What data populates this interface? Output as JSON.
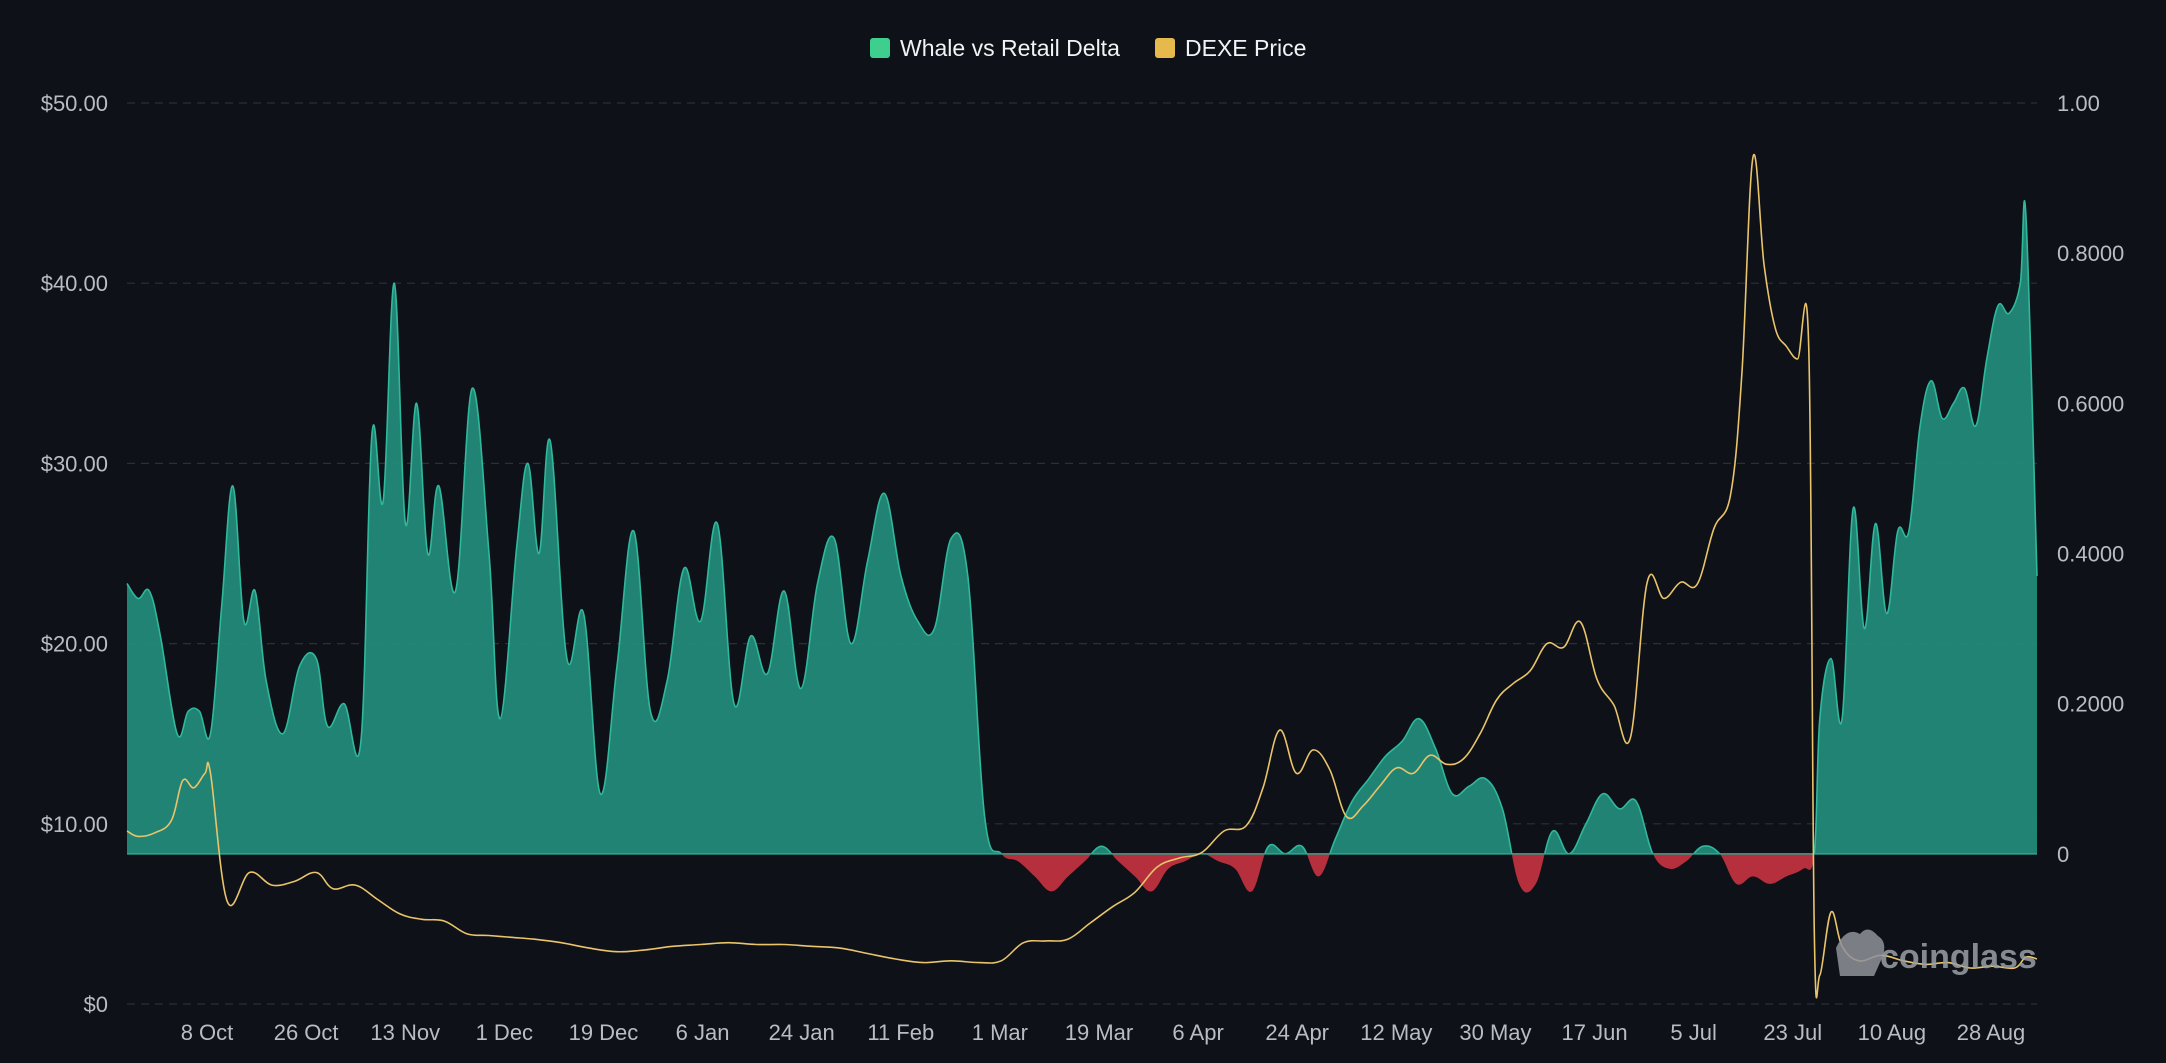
{
  "chart_data": {
    "type": "area",
    "legend": {
      "placement": "top-center",
      "items": [
        {
          "label": "Whale vs Retail Delta",
          "color": "#3ecf8e"
        },
        {
          "label": "DEXE Price",
          "color": "#e6b94c"
        }
      ]
    },
    "colors": {
      "background": "#0e1117",
      "area_positive": "#238a78",
      "area_positive_line": "#2fb89c",
      "area_negative": "#c0313f",
      "price_line": "#e9c46a",
      "grid": "#2a2f38",
      "tick_text": "#b8bcc4"
    },
    "left_axis": {
      "ticks": [
        "$50.00",
        "$40.00",
        "$30.00",
        "$20.00",
        "$10.00",
        "$0"
      ],
      "range": [
        0,
        50
      ]
    },
    "right_axis": {
      "ticks": [
        "1.00",
        "0.8000",
        "0.6000",
        "0.4000",
        "0.2000",
        "0"
      ],
      "range": [
        -0.2,
        1.0
      ]
    },
    "x_ticks": [
      "8 Oct",
      "26 Oct",
      "13 Nov",
      "1 Dec",
      "19 Dec",
      "6 Jan",
      "24 Jan",
      "11 Feb",
      "1 Mar",
      "19 Mar",
      "6 Apr",
      "24 Apr",
      "12 May",
      "30 May",
      "17 Jun",
      "5 Jul",
      "23 Jul",
      "10 Aug",
      "28 Aug"
    ],
    "x_range": [
      "2024-09-22",
      "2025-08-31"
    ],
    "grid": true,
    "watermark": "coinglass",
    "series": [
      {
        "name": "Whale vs Retail Delta",
        "axis": "right",
        "x": [
          "2024-09-22",
          "2024-09-24",
          "2024-09-26",
          "2024-09-28",
          "2024-10-01",
          "2024-10-03",
          "2024-10-05",
          "2024-10-07",
          "2024-10-09",
          "2024-10-11",
          "2024-10-13",
          "2024-10-15",
          "2024-10-17",
          "2024-10-20",
          "2024-10-23",
          "2024-10-26",
          "2024-10-28",
          "2024-10-31",
          "2024-11-03",
          "2024-11-05",
          "2024-11-07",
          "2024-11-09",
          "2024-11-11",
          "2024-11-13",
          "2024-11-15",
          "2024-11-17",
          "2024-11-20",
          "2024-11-23",
          "2024-11-26",
          "2024-11-28",
          "2024-12-01",
          "2024-12-03",
          "2024-12-05",
          "2024-12-07",
          "2024-12-10",
          "2024-12-13",
          "2024-12-16",
          "2024-12-19",
          "2024-12-22",
          "2024-12-25",
          "2024-12-28",
          "2024-12-31",
          "2025-01-03",
          "2025-01-06",
          "2025-01-09",
          "2025-01-12",
          "2025-01-15",
          "2025-01-18",
          "2025-01-21",
          "2025-01-24",
          "2025-01-27",
          "2025-01-30",
          "2025-02-02",
          "2025-02-05",
          "2025-02-08",
          "2025-02-11",
          "2025-02-14",
          "2025-02-17",
          "2025-02-20",
          "2025-02-23",
          "2025-02-26",
          "2025-03-01",
          "2025-03-04",
          "2025-03-07",
          "2025-03-10",
          "2025-03-13",
          "2025-03-16",
          "2025-03-19",
          "2025-03-22",
          "2025-03-25",
          "2025-03-28",
          "2025-03-31",
          "2025-04-03",
          "2025-04-06",
          "2025-04-09",
          "2025-04-12",
          "2025-04-15",
          "2025-04-18",
          "2025-04-21",
          "2025-04-24",
          "2025-04-27",
          "2025-04-30",
          "2025-05-03",
          "2025-05-06",
          "2025-05-09",
          "2025-05-12",
          "2025-05-15",
          "2025-05-18",
          "2025-05-21",
          "2025-05-24",
          "2025-05-27",
          "2025-05-30",
          "2025-06-02",
          "2025-06-05",
          "2025-06-08",
          "2025-06-11",
          "2025-06-14",
          "2025-06-17",
          "2025-06-20",
          "2025-06-23",
          "2025-06-26",
          "2025-06-29",
          "2025-07-02",
          "2025-07-05",
          "2025-07-08",
          "2025-07-11",
          "2025-07-14",
          "2025-07-17",
          "2025-07-20",
          "2025-07-22",
          "2025-07-23",
          "2025-07-25",
          "2025-07-27",
          "2025-07-29",
          "2025-07-31",
          "2025-08-02",
          "2025-08-04",
          "2025-08-06",
          "2025-08-08",
          "2025-08-10",
          "2025-08-12",
          "2025-08-14",
          "2025-08-16",
          "2025-08-18",
          "2025-08-20",
          "2025-08-22",
          "2025-08-24",
          "2025-08-26",
          "2025-08-28",
          "2025-08-29",
          "2025-08-31"
        ],
        "values": [
          0.36,
          0.34,
          0.35,
          0.29,
          0.16,
          0.19,
          0.19,
          0.16,
          0.33,
          0.49,
          0.31,
          0.35,
          0.23,
          0.16,
          0.25,
          0.26,
          0.17,
          0.2,
          0.15,
          0.56,
          0.47,
          0.76,
          0.44,
          0.6,
          0.4,
          0.49,
          0.35,
          0.62,
          0.4,
          0.18,
          0.41,
          0.52,
          0.4,
          0.55,
          0.26,
          0.32,
          0.08,
          0.25,
          0.43,
          0.19,
          0.23,
          0.38,
          0.31,
          0.44,
          0.2,
          0.29,
          0.24,
          0.35,
          0.22,
          0.36,
          0.42,
          0.28,
          0.39,
          0.48,
          0.37,
          0.31,
          0.3,
          0.42,
          0.37,
          0.05,
          0.0,
          -0.01,
          -0.03,
          -0.05,
          -0.03,
          -0.01,
          0.01,
          -0.01,
          -0.03,
          -0.05,
          -0.02,
          -0.01,
          0.0,
          -0.01,
          -0.02,
          -0.05,
          0.01,
          0.0,
          0.01,
          -0.03,
          0.02,
          0.07,
          0.1,
          0.13,
          0.15,
          0.18,
          0.14,
          0.08,
          0.09,
          0.1,
          0.06,
          -0.04,
          -0.04,
          0.03,
          0.0,
          0.04,
          0.08,
          0.06,
          0.07,
          0.0,
          -0.02,
          -0.01,
          0.01,
          0.0,
          -0.04,
          -0.03,
          -0.04,
          -0.03,
          -0.02,
          0.0,
          0.18,
          0.26,
          0.18,
          0.46,
          0.3,
          0.44,
          0.32,
          0.43,
          0.43,
          0.57,
          0.63,
          0.58,
          0.6,
          0.62,
          0.57,
          0.66,
          0.73,
          0.72,
          0.76,
          0.85,
          0.37
        ]
      },
      {
        "name": "DEXE Price",
        "axis": "left",
        "x": [
          "2024-09-22",
          "2024-09-24",
          "2024-09-27",
          "2024-09-30",
          "2024-10-02",
          "2024-10-04",
          "2024-10-06",
          "2024-10-07",
          "2024-10-10",
          "2024-10-14",
          "2024-10-18",
          "2024-10-22",
          "2024-10-26",
          "2024-10-29",
          "2024-11-02",
          "2024-11-06",
          "2024-11-10",
          "2024-11-14",
          "2024-11-18",
          "2024-11-22",
          "2024-11-26",
          "2024-11-30",
          "2024-12-04",
          "2024-12-09",
          "2024-12-14",
          "2024-12-19",
          "2024-12-24",
          "2024-12-29",
          "2025-01-03",
          "2025-01-08",
          "2025-01-13",
          "2025-01-18",
          "2025-01-23",
          "2025-01-28",
          "2025-02-02",
          "2025-02-07",
          "2025-02-12",
          "2025-02-17",
          "2025-02-22",
          "2025-02-26",
          "2025-03-02",
          "2025-03-06",
          "2025-03-10",
          "2025-03-14",
          "2025-03-18",
          "2025-03-22",
          "2025-03-26",
          "2025-03-30",
          "2025-04-03",
          "2025-04-07",
          "2025-04-11",
          "2025-04-14",
          "2025-04-17",
          "2025-04-20",
          "2025-04-23",
          "2025-04-26",
          "2025-04-29",
          "2025-05-02",
          "2025-05-05",
          "2025-05-08",
          "2025-05-11",
          "2025-05-14",
          "2025-05-17",
          "2025-05-20",
          "2025-05-23",
          "2025-05-26",
          "2025-05-29",
          "2025-06-01",
          "2025-06-04",
          "2025-06-07",
          "2025-06-10",
          "2025-06-13",
          "2025-06-16",
          "2025-06-19",
          "2025-06-22",
          "2025-06-25",
          "2025-06-28",
          "2025-07-01",
          "2025-07-04",
          "2025-07-07",
          "2025-07-09",
          "2025-07-11",
          "2025-07-13",
          "2025-07-15",
          "2025-07-17",
          "2025-07-19",
          "2025-07-21",
          "2025-07-22",
          "2025-07-23",
          "2025-07-25",
          "2025-07-27",
          "2025-07-30",
          "2025-08-03",
          "2025-08-07",
          "2025-08-11",
          "2025-08-15",
          "2025-08-19",
          "2025-08-23",
          "2025-08-27",
          "2025-08-29",
          "2025-08-31"
        ],
        "values": [
          9.6,
          9.3,
          9.5,
          10.2,
          12.4,
          12.0,
          12.8,
          12.8,
          5.7,
          7.3,
          6.6,
          6.8,
          7.3,
          6.4,
          6.6,
          5.8,
          5.0,
          4.7,
          4.6,
          3.9,
          3.8,
          3.7,
          3.6,
          3.4,
          3.1,
          2.9,
          3.0,
          3.2,
          3.3,
          3.4,
          3.3,
          3.3,
          3.2,
          3.1,
          2.8,
          2.5,
          2.3,
          2.4,
          2.3,
          2.4,
          3.4,
          3.5,
          3.6,
          4.5,
          5.4,
          6.2,
          7.6,
          8.1,
          8.4,
          9.6,
          9.9,
          12.0,
          15.2,
          12.8,
          14.1,
          13.0,
          10.4,
          11.0,
          12.1,
          13.1,
          12.8,
          13.8,
          13.3,
          13.6,
          15.0,
          16.9,
          17.8,
          18.5,
          20.0,
          19.8,
          21.2,
          18.0,
          16.6,
          14.8,
          23.4,
          22.5,
          23.4,
          23.3,
          26.4,
          28.3,
          35.0,
          47.0,
          41.0,
          37.5,
          36.5,
          35.8,
          36.5,
          4.0,
          1.6,
          5.1,
          3.2,
          2.4,
          2.7,
          2.4,
          2.2,
          2.3,
          2.0,
          2.1,
          2.0,
          2.6,
          2.5
        ]
      }
    ]
  }
}
